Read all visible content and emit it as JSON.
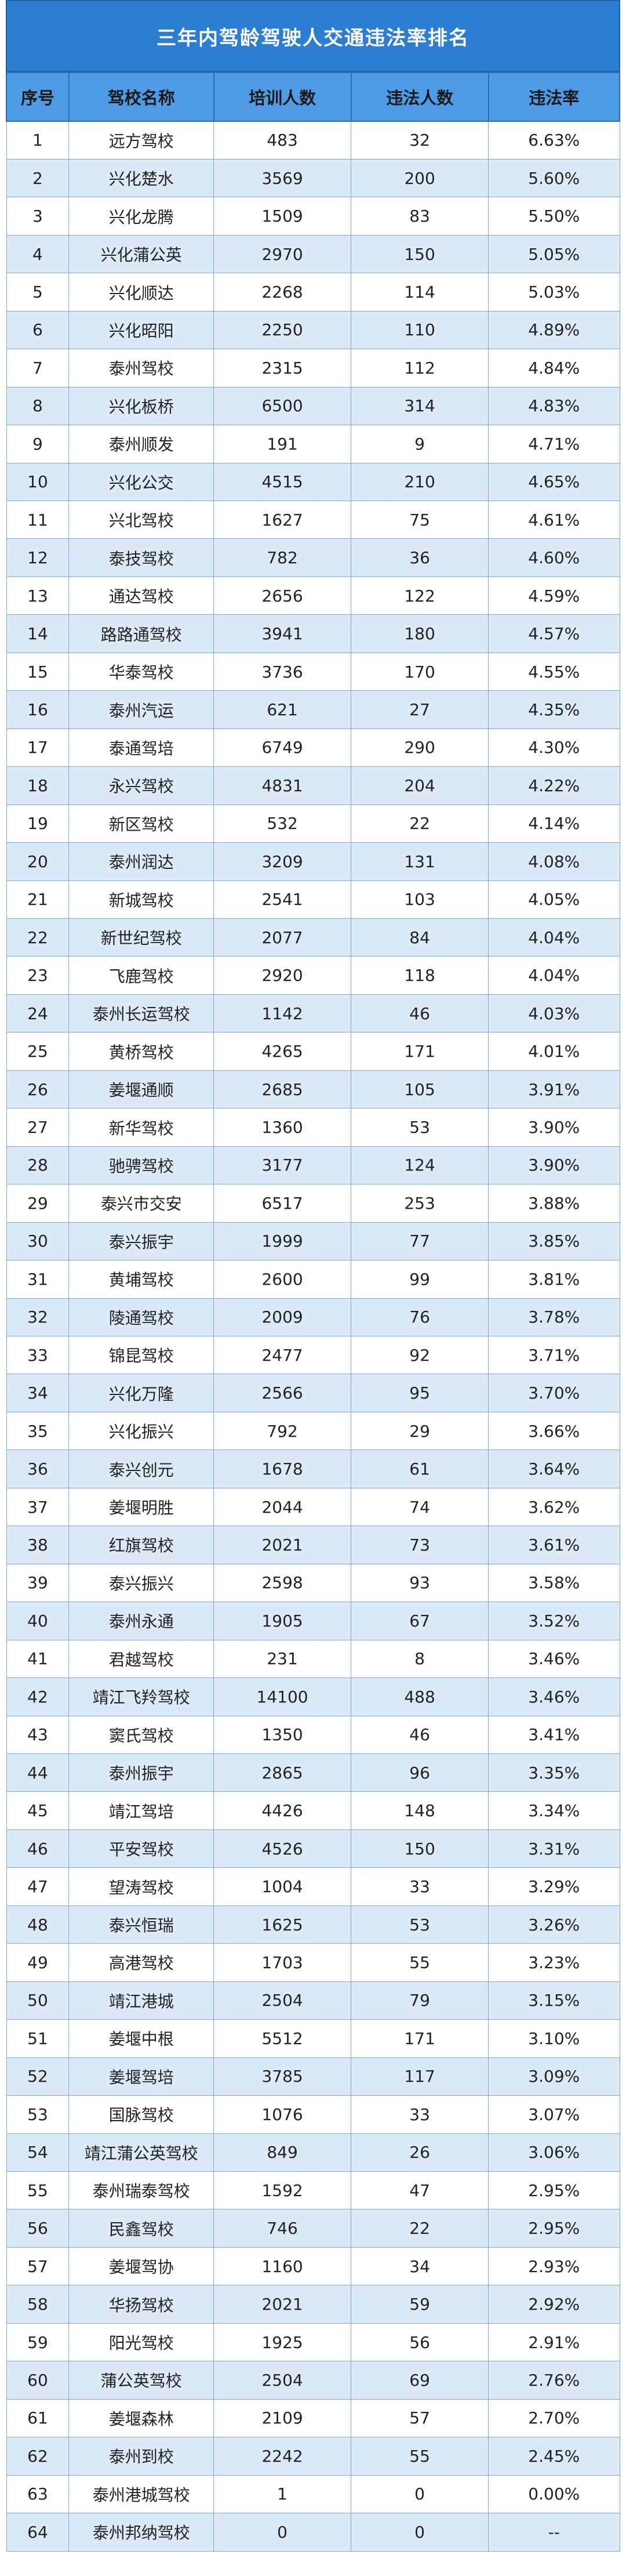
{
  "title": "三年内驾龄驾驶人交通违法率排名",
  "headers": [
    "序号",
    "驾校名称",
    "培训人数",
    "违法人数",
    "违法率"
  ],
  "rows": [
    [
      "1",
      "远方驾校",
      "483",
      "32",
      "6.63%"
    ],
    [
      "2",
      "兴化楚水",
      "3569",
      "200",
      "5.60%"
    ],
    [
      "3",
      "兴化龙腾",
      "1509",
      "83",
      "5.50%"
    ],
    [
      "4",
      "兴化蒲公英",
      "2970",
      "150",
      "5.05%"
    ],
    [
      "5",
      "兴化顺达",
      "2268",
      "114",
      "5.03%"
    ],
    [
      "6",
      "兴化昭阳",
      "2250",
      "110",
      "4.89%"
    ],
    [
      "7",
      "泰州驾校",
      "2315",
      "112",
      "4.84%"
    ],
    [
      "8",
      "兴化板桥",
      "6500",
      "314",
      "4.83%"
    ],
    [
      "9",
      "泰州顺发",
      "191",
      "9",
      "4.71%"
    ],
    [
      "10",
      "兴化公交",
      "4515",
      "210",
      "4.65%"
    ],
    [
      "11",
      "兴北驾校",
      "1627",
      "75",
      "4.61%"
    ],
    [
      "12",
      "泰技驾校",
      "782",
      "36",
      "4.60%"
    ],
    [
      "13",
      "通达驾校",
      "2656",
      "122",
      "4.59%"
    ],
    [
      "14",
      "路路通驾校",
      "3941",
      "180",
      "4.57%"
    ],
    [
      "15",
      "华泰驾校",
      "3736",
      "170",
      "4.55%"
    ],
    [
      "16",
      "泰州汽运",
      "621",
      "27",
      "4.35%"
    ],
    [
      "17",
      "泰通驾培",
      "6749",
      "290",
      "4.30%"
    ],
    [
      "18",
      "永兴驾校",
      "4831",
      "204",
      "4.22%"
    ],
    [
      "19",
      "新区驾校",
      "532",
      "22",
      "4.14%"
    ],
    [
      "20",
      "泰州润达",
      "3209",
      "131",
      "4.08%"
    ],
    [
      "21",
      "新城驾校",
      "2541",
      "103",
      "4.05%"
    ],
    [
      "22",
      "新世纪驾校",
      "2077",
      "84",
      "4.04%"
    ],
    [
      "23",
      "飞鹿驾校",
      "2920",
      "118",
      "4.04%"
    ],
    [
      "24",
      "泰州长运驾校",
      "1142",
      "46",
      "4.03%"
    ],
    [
      "25",
      "黄桥驾校",
      "4265",
      "171",
      "4.01%"
    ],
    [
      "26",
      "姜堰通顺",
      "2685",
      "105",
      "3.91%"
    ],
    [
      "27",
      "新华驾校",
      "1360",
      "53",
      "3.90%"
    ],
    [
      "28",
      "驰骋驾校",
      "3177",
      "124",
      "3.90%"
    ],
    [
      "29",
      "泰兴市交安",
      "6517",
      "253",
      "3.88%"
    ],
    [
      "30",
      "泰兴振宇",
      "1999",
      "77",
      "3.85%"
    ],
    [
      "31",
      "黄埔驾校",
      "2600",
      "99",
      "3.81%"
    ],
    [
      "32",
      "陵通驾校",
      "2009",
      "76",
      "3.78%"
    ],
    [
      "33",
      "锦昆驾校",
      "2477",
      "92",
      "3.71%"
    ],
    [
      "34",
      "兴化万隆",
      "2566",
      "95",
      "3.70%"
    ],
    [
      "35",
      "兴化振兴",
      "792",
      "29",
      "3.66%"
    ],
    [
      "36",
      "泰兴创元",
      "1678",
      "61",
      "3.64%"
    ],
    [
      "37",
      "姜堰明胜",
      "2044",
      "74",
      "3.62%"
    ],
    [
      "38",
      "红旗驾校",
      "2021",
      "73",
      "3.61%"
    ],
    [
      "39",
      "泰兴振兴",
      "2598",
      "93",
      "3.58%"
    ],
    [
      "40",
      "泰州永通",
      "1905",
      "67",
      "3.52%"
    ],
    [
      "41",
      "君越驾校",
      "231",
      "8",
      "3.46%"
    ],
    [
      "42",
      "靖江飞羚驾校",
      "14100",
      "488",
      "3.46%"
    ],
    [
      "43",
      "窦氏驾校",
      "1350",
      "46",
      "3.41%"
    ],
    [
      "44",
      "泰州振宇",
      "2865",
      "96",
      "3.35%"
    ],
    [
      "45",
      "靖江驾培",
      "4426",
      "148",
      "3.34%"
    ],
    [
      "46",
      "平安驾校",
      "4526",
      "150",
      "3.31%"
    ],
    [
      "47",
      "望涛驾校",
      "1004",
      "33",
      "3.29%"
    ],
    [
      "48",
      "泰兴恒瑞",
      "1625",
      "53",
      "3.26%"
    ],
    [
      "49",
      "高港驾校",
      "1703",
      "55",
      "3.23%"
    ],
    [
      "50",
      "靖江港城",
      "2504",
      "79",
      "3.15%"
    ],
    [
      "51",
      "姜堰中根",
      "5512",
      "171",
      "3.10%"
    ],
    [
      "52",
      "姜堰驾培",
      "3785",
      "117",
      "3.09%"
    ],
    [
      "53",
      "国脉驾校",
      "1076",
      "33",
      "3.07%"
    ],
    [
      "54",
      "靖江蒲公英驾校",
      "849",
      "26",
      "3.06%"
    ],
    [
      "55",
      "泰州瑞泰驾校",
      "1592",
      "47",
      "2.95%"
    ],
    [
      "56",
      "民鑫驾校",
      "746",
      "22",
      "2.95%"
    ],
    [
      "57",
      "姜堰驾协",
      "1160",
      "34",
      "2.93%"
    ],
    [
      "58",
      "华扬驾校",
      "2021",
      "59",
      "2.92%"
    ],
    [
      "59",
      "阳光驾校",
      "1925",
      "56",
      "2.91%"
    ],
    [
      "60",
      "蒲公英驾校",
      "2504",
      "69",
      "2.76%"
    ],
    [
      "61",
      "姜堰森林",
      "2109",
      "57",
      "2.70%"
    ],
    [
      "62",
      "泰州到校",
      "2242",
      "55",
      "2.45%"
    ],
    [
      "63",
      "泰州港城驾校",
      "1",
      "0",
      "0.00%"
    ],
    [
      "64",
      "泰州邦纳驾校",
      "0",
      "0",
      "--"
    ]
  ]
}
